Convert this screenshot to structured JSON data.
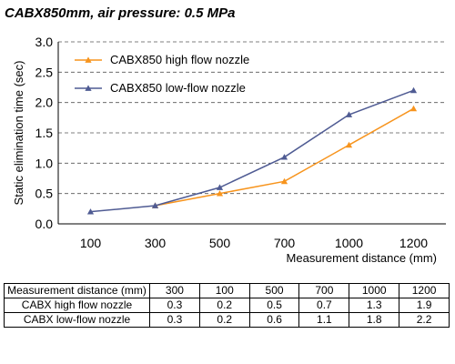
{
  "title": "CABX850mm, air pressure: 0.5 MPa",
  "chart_data": {
    "type": "line",
    "xlabel": "Measurement distance (mm)",
    "ylabel": "Static elimination time (sec)",
    "categories": [
      "100",
      "300",
      "500",
      "700",
      "1000",
      "1200"
    ],
    "yticks": [
      "0.0",
      "0.5",
      "1.0",
      "1.5",
      "2.0",
      "2.5",
      "3.0"
    ],
    "ylim": [
      0,
      3.0
    ],
    "grid": "horizontal dashed",
    "legend_position": "top-left",
    "series": [
      {
        "name": "CABX850 high flow nozzle",
        "marker": "triangle",
        "color": "#f7941d",
        "values": [
          null,
          0.3,
          0.5,
          0.7,
          1.3,
          1.9
        ]
      },
      {
        "name": "CABX850 low-flow nozzle",
        "marker": "triangle",
        "color": "#4f5b93",
        "values": [
          0.2,
          0.3,
          0.6,
          1.1,
          1.8,
          2.2
        ]
      }
    ]
  },
  "table": {
    "header": [
      "Measurement distance (mm)",
      "300",
      "100",
      "500",
      "700",
      "1000",
      "1200"
    ],
    "rows": [
      [
        "CABX high flow nozzle",
        "0.3",
        "0.2",
        "0.5",
        "0.7",
        "1.3",
        "1.9"
      ],
      [
        "CABX low-flow nozzle",
        "0.3",
        "0.2",
        "0.6",
        "1.1",
        "1.8",
        "2.2"
      ]
    ]
  }
}
